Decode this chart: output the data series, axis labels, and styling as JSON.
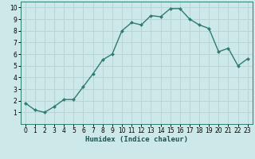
{
  "x": [
    0,
    1,
    2,
    3,
    4,
    5,
    6,
    7,
    8,
    9,
    10,
    11,
    12,
    13,
    14,
    15,
    16,
    17,
    18,
    19,
    20,
    21,
    22,
    23
  ],
  "y": [
    1.8,
    1.2,
    1.0,
    1.5,
    2.1,
    2.1,
    3.2,
    4.3,
    5.5,
    6.0,
    8.0,
    8.7,
    8.5,
    9.3,
    9.2,
    9.9,
    9.9,
    9.0,
    8.5,
    8.2,
    6.2,
    6.5,
    5.0,
    5.6
  ],
  "line_color": "#2e7d6e",
  "marker": "D",
  "marker_size": 2.0,
  "background_color": "#cce8e8",
  "grid_color": "#b8d4d4",
  "xlabel": "Humidex (Indice chaleur)",
  "xlim": [
    -0.5,
    23.5
  ],
  "ylim": [
    0,
    10.5
  ],
  "yticks": [
    1,
    2,
    3,
    4,
    5,
    6,
    7,
    8,
    9,
    10
  ],
  "xticks": [
    0,
    1,
    2,
    3,
    4,
    5,
    6,
    7,
    8,
    9,
    10,
    11,
    12,
    13,
    14,
    15,
    16,
    17,
    18,
    19,
    20,
    21,
    22,
    23
  ],
  "tick_fontsize": 5.5,
  "xlabel_fontsize": 6.5,
  "spine_color": "#2e7d6e",
  "line_width": 1.0
}
